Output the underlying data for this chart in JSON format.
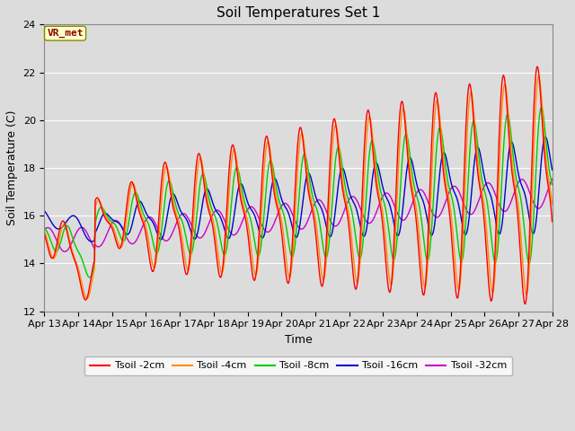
{
  "title": "Soil Temperatures Set 1",
  "xlabel": "Time",
  "ylabel": "Soil Temperature (C)",
  "ylim": [
    12,
    24
  ],
  "yticks": [
    12,
    14,
    16,
    18,
    20,
    22,
    24
  ],
  "x_labels": [
    "Apr 13",
    "Apr 14",
    "Apr 15",
    "Apr 16",
    "Apr 17",
    "Apr 18",
    "Apr 19",
    "Apr 20",
    "Apr 21",
    "Apr 22",
    "Apr 23",
    "Apr 24",
    "Apr 25",
    "Apr 26",
    "Apr 27",
    "Apr 28"
  ],
  "colors": {
    "Tsoil -2cm": "#ff0000",
    "Tsoil -4cm": "#ff8c00",
    "Tsoil -8cm": "#00cc00",
    "Tsoil -16cm": "#0000cc",
    "Tsoil -32cm": "#cc00cc"
  },
  "legend_label": "VR_met",
  "background_color": "#dcdcdc",
  "title_fontsize": 11,
  "label_fontsize": 9,
  "tick_fontsize": 8
}
